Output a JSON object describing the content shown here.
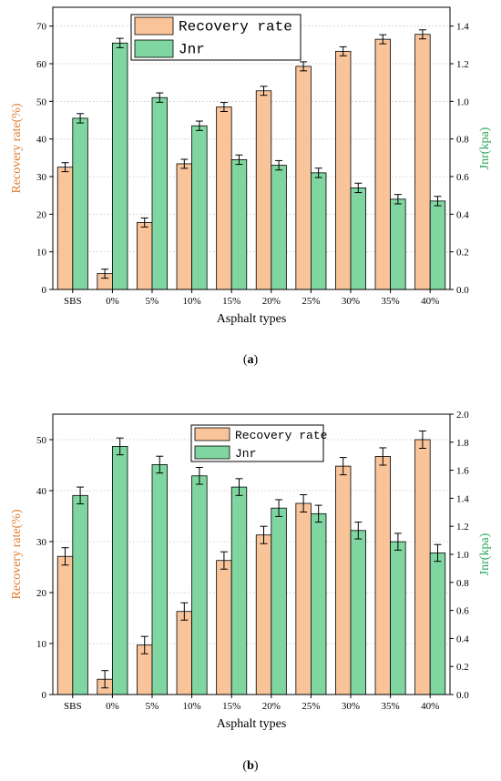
{
  "colors": {
    "recovery": "#f9c49a",
    "jnr": "#7fd6a0",
    "left_axis": "#e07b2c",
    "right_axis": "#2aa85a",
    "bar_edge": "#000000"
  },
  "captions": [
    "a",
    "b"
  ],
  "chart_data": [
    {
      "type": "bar",
      "panel": "a",
      "categories": [
        "SBS",
        "0%",
        "5%",
        "10%",
        "15%",
        "20%",
        "25%",
        "30%",
        "35%",
        "40%"
      ],
      "xlabel": "Asphalt types",
      "ylabel_left": "Recovery rate(%)",
      "ylabel_right": "Jnr(kpa)",
      "ylim_left": [
        0,
        75
      ],
      "yticks_left": [
        0,
        10,
        20,
        30,
        40,
        50,
        60,
        70
      ],
      "ylim_right": [
        0,
        1.5
      ],
      "yticks_right": [
        0.0,
        0.2,
        0.4,
        0.6,
        0.8,
        1.0,
        1.2,
        1.4
      ],
      "grid": true,
      "legend_position": "top-center",
      "series": [
        {
          "name": "Recovery rate",
          "axis": "left",
          "values": [
            32.5,
            4.2,
            17.8,
            33.4,
            48.5,
            52.8,
            59.3,
            63.3,
            66.5,
            67.8
          ],
          "errors": [
            1.2,
            1.2,
            1.2,
            1.2,
            1.2,
            1.2,
            1.2,
            1.2,
            1.2,
            1.2
          ]
        },
        {
          "name": "Jnr",
          "axis": "right",
          "values": [
            0.91,
            1.31,
            1.02,
            0.87,
            0.69,
            0.66,
            0.62,
            0.54,
            0.48,
            0.47
          ],
          "errors": [
            0.025,
            0.025,
            0.025,
            0.025,
            0.025,
            0.025,
            0.025,
            0.025,
            0.025,
            0.025
          ]
        }
      ]
    },
    {
      "type": "bar",
      "panel": "b",
      "categories": [
        "SBS",
        "0%",
        "5%",
        "10%",
        "15%",
        "20%",
        "25%",
        "30%",
        "35%",
        "40%"
      ],
      "xlabel": "Asphalt types",
      "ylabel_left": "Recovery rate(%)",
      "ylabel_right": "Jnr(kpa)",
      "ylim_left": [
        0,
        55
      ],
      "yticks_left": [
        0,
        10,
        20,
        30,
        40,
        50
      ],
      "ylim_right": [
        0,
        2.0
      ],
      "yticks_right": [
        0.0,
        0.2,
        0.4,
        0.6,
        0.8,
        1.0,
        1.2,
        1.4,
        1.6,
        1.8,
        2.0
      ],
      "grid": true,
      "legend_position": "top-center",
      "series": [
        {
          "name": "Recovery rate",
          "axis": "left",
          "values": [
            27.1,
            3.0,
            9.7,
            16.3,
            26.3,
            31.3,
            37.5,
            44.8,
            46.7,
            50.0
          ],
          "errors": [
            1.7,
            1.7,
            1.7,
            1.7,
            1.7,
            1.7,
            1.7,
            1.7,
            1.7,
            1.7
          ]
        },
        {
          "name": "Jnr",
          "axis": "right",
          "values": [
            1.42,
            1.77,
            1.64,
            1.56,
            1.48,
            1.33,
            1.29,
            1.17,
            1.09,
            1.01
          ],
          "errors": [
            0.06,
            0.06,
            0.06,
            0.06,
            0.06,
            0.06,
            0.06,
            0.06,
            0.06,
            0.06
          ]
        }
      ]
    }
  ]
}
